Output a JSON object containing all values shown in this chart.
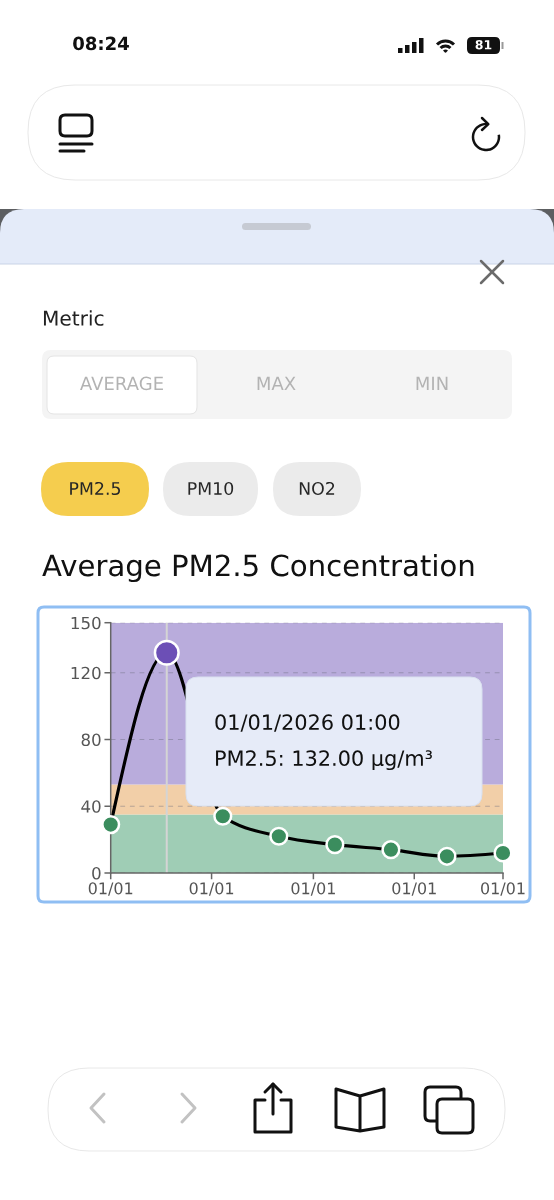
{
  "chart_data": {
    "type": "line",
    "title": "Average PM2.5 Concentration",
    "x": [
      "2026-01-01T00:00",
      "2026-01-01T01:00",
      "2026-01-01T02:00",
      "2026-01-01T03:00",
      "2026-01-01T04:00",
      "2026-01-01T05:00",
      "2026-01-01T06:00",
      "2026-01-01T07:00"
    ],
    "series": [
      {
        "color": "#000000",
        "values": [
          29,
          132,
          34,
          22,
          17,
          14,
          10,
          12
        ],
        "colors": [
          "#3b8d5e",
          "#6c4fb6",
          "#3b8d5e",
          "#3b8d5e",
          "#3b8d5e",
          "#3b8d5e",
          "#3b8d5e",
          "#3b8d5e"
        ]
      }
    ],
    "xlim": [
      "2026-01-01T00:00",
      "2026-01-01T07:00"
    ],
    "xticks": [
      {
        "value": "2026-01-01T00:00",
        "label": "01/01"
      },
      {
        "value": "2026-01-01T01:48",
        "label": "01/01"
      },
      {
        "value": "2026-01-01T03:37",
        "label": "01/01"
      },
      {
        "value": "2026-01-01T05:25",
        "label": "01/01"
      },
      {
        "value": "2026-01-01T07:00",
        "label": "01/01"
      }
    ],
    "ylim": [
      0,
      150
    ],
    "yticks": [
      0,
      40,
      80,
      120,
      150
    ],
    "grid": "y",
    "marker": "circle",
    "line_style": "solid",
    "bands": [
      {
        "axis": "y",
        "from": 0,
        "to": 35,
        "color": "#9fcdb5"
      },
      {
        "axis": "y",
        "from": 35,
        "to": 53,
        "color": "#f2cfa8"
      },
      {
        "axis": "y",
        "from": 53,
        "to": 150,
        "color": "#b9acdc"
      }
    ],
    "ref_lines": [
      {
        "axis": "x",
        "value": "2026-01-01T01:00",
        "color": "#d4d4d4"
      }
    ],
    "annotations": [
      "08:24",
      "81",
      "Metric",
      "AVERAGE",
      "MAX",
      "MIN",
      "PM2.5",
      "PM10",
      "NO2",
      "01/01/2026 01:00\nPM2.5: 132.00 µg/m³"
    ]
  }
}
